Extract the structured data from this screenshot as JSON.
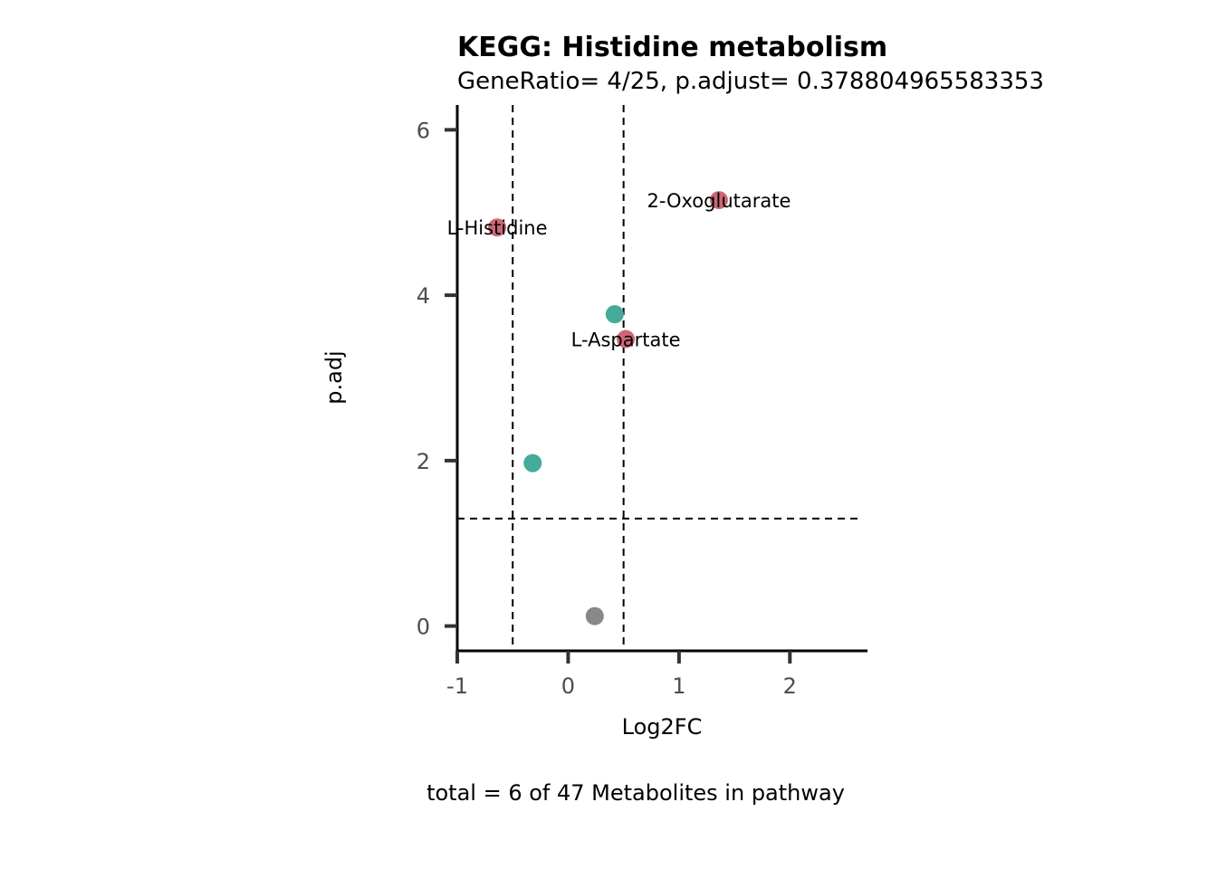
{
  "chart_data": {
    "type": "scatter",
    "title": "KEGG: Histidine metabolism",
    "subtitle": "GeneRatio= 4/25, p.adjust= 0.378804965583353",
    "xlabel": "Log2FC",
    "ylabel": "p.adj",
    "caption": "total = 6 of 47 Metabolites in pathway",
    "xlim": [
      -1,
      2.7
    ],
    "ylim": [
      -0.3,
      6.3
    ],
    "x_ticks": [
      -1,
      0,
      1,
      2
    ],
    "x_tick_labels": [
      "-1",
      "0",
      "1",
      "2"
    ],
    "y_ticks": [
      0,
      2,
      4,
      6
    ],
    "y_tick_labels": [
      "0",
      "2",
      "4",
      "6"
    ],
    "grid": false,
    "vlines": [
      -0.5,
      0.5
    ],
    "hlines": [
      1.3
    ],
    "points": [
      {
        "x": -0.64,
        "y": 4.82,
        "color": "#cc6677",
        "label": "L-Histidine"
      },
      {
        "x": 1.36,
        "y": 5.15,
        "color": "#cc6677",
        "label": "2-Oxoglutarate"
      },
      {
        "x": 0.52,
        "y": 3.47,
        "color": "#cc6677",
        "label": "L-Aspartate"
      },
      {
        "x": 0.42,
        "y": 3.77,
        "color": "#44aa99",
        "label": ""
      },
      {
        "x": -0.32,
        "y": 1.97,
        "color": "#44aa99",
        "label": ""
      },
      {
        "x": 0.24,
        "y": 0.12,
        "color": "#888888",
        "label": ""
      }
    ]
  }
}
